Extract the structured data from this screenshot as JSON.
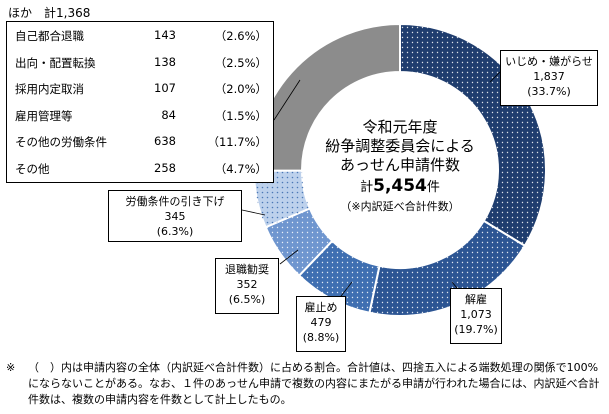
{
  "chart_data": {
    "type": "donut",
    "title": "令和元年度\n紛争調整委員会による\nあっせん申請件数",
    "total_prefix": "計",
    "total_value": "5,454",
    "total_unit": "件",
    "total_note": "（※内訳延べ合計件数）",
    "slices": [
      {
        "label": "いじめ・嫌がらせ",
        "value": 1837,
        "count_text": "1,837",
        "pct_text": "(33.7%)",
        "color": "#1f3d6e"
      },
      {
        "label": "解雇",
        "value": 1073,
        "count_text": "1,073",
        "pct_text": "(19.7%)",
        "color": "#2c5593"
      },
      {
        "label": "雇止め",
        "value": 479,
        "count_text": "479",
        "pct_text": "(8.8%)",
        "color": "#3f6fb1"
      },
      {
        "label": "退職勧奨",
        "value": 352,
        "count_text": "352",
        "pct_text": "(6.5%)",
        "color": "#6f96cf"
      },
      {
        "label": "労働条件の引き下げ",
        "value": 345,
        "count_text": "345",
        "pct_text": "(6.3%)",
        "color": "#bdd1ec"
      },
      {
        "label": "ほか",
        "value": 1368,
        "count_text": "1,368",
        "pct_text": "",
        "color": "#8c8c8c"
      }
    ],
    "others": {
      "title": "ほか　計1,368",
      "items": [
        {
          "label": "自己都合退職",
          "count": "143",
          "pct": "（2.6%）"
        },
        {
          "label": "出向・配置転換",
          "count": "138",
          "pct": "（2.5%）"
        },
        {
          "label": "採用内定取消",
          "count": "107",
          "pct": "（2.0%）"
        },
        {
          "label": "雇用管理等",
          "count": "84",
          "pct": "（1.5%）"
        },
        {
          "label": "その他の労働条件",
          "count": "638",
          "pct": "（11.7%）"
        },
        {
          "label": "その他",
          "count": "258",
          "pct": "（4.7%）"
        }
      ]
    }
  },
  "footnote": {
    "mark": "※",
    "text": "（　）内は申請内容の全体（内訳延べ合計件数）に占める割合。合計値は、四捨五入による端数処理の関係で100%にならないことがある。なお、１件のあっせん申請で複数の内容にまたがる申請が行われた場合には、内訳延べ合計件数は、複数の申請内容を件数として計上したもの。"
  }
}
